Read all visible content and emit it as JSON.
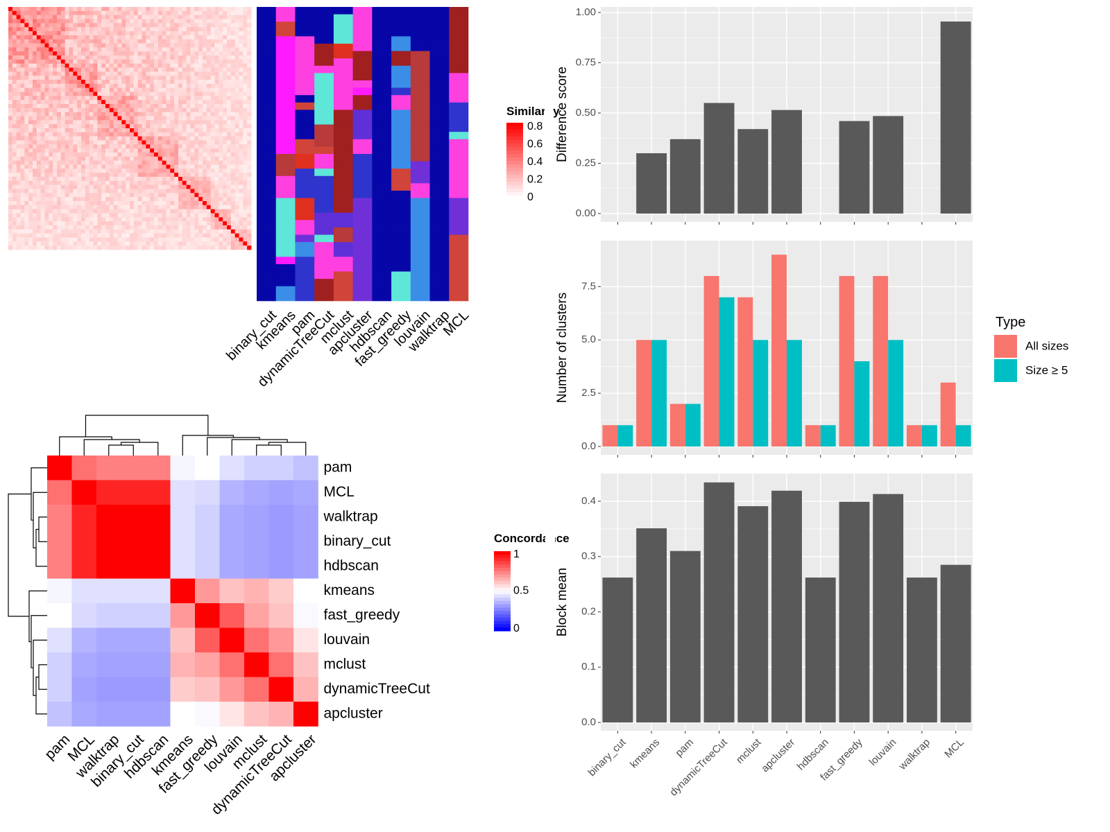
{
  "colors": {
    "heat_low": "#ffffff",
    "heat_high": "#ff0000",
    "concord_low": "#0000ff",
    "concord_mid": "#ffffff",
    "concord_high": "#ff0000",
    "bar_dark": "#595959",
    "panel_bg": "#ebebeb",
    "all_sizes": "#f8766d",
    "size_ge5": "#00bfc4",
    "cluster_palette": [
      "#0707a8",
      "#2f35cc",
      "#5f30d8",
      "#7030d8",
      "#3a8ee8",
      "#b83a3a",
      "#d0443a",
      "#e03020",
      "#ff40e0",
      "#ff1aff",
      "#5ee6d8",
      "#a02020"
    ]
  },
  "chart_data": [
    {
      "id": "similarity_heatmap",
      "type": "heatmap",
      "legend_title": "Similarity",
      "legend_ticks": [
        "0.8",
        "0.6",
        "0.4",
        "0.2",
        "0"
      ],
      "n_samples": 60,
      "scale": [
        0,
        0.8
      ]
    },
    {
      "id": "cluster_assignments",
      "type": "heatmap",
      "methods": [
        "binary_cut",
        "kmeans",
        "pam",
        "dynamicTreeCut",
        "mclust",
        "apcluster",
        "hdbscan",
        "fast_greedy",
        "louvain",
        "walktrap",
        "MCL"
      ]
    },
    {
      "id": "concordance_heatmap",
      "type": "heatmap",
      "legend_title": "Concordance",
      "legend_ticks": [
        "1",
        "0.5",
        "0"
      ],
      "row_labels": [
        "pam",
        "MCL",
        "walktrap",
        "binary_cut",
        "hdbscan",
        "kmeans",
        "fast_greedy",
        "louvain",
        "mclust",
        "dynamicTreeCut",
        "apcluster"
      ],
      "col_labels": [
        "pam",
        "MCL",
        "walktrap",
        "binary_cut",
        "hdbscan",
        "kmeans",
        "fast_greedy",
        "louvain",
        "mclust",
        "dynamicTreeCut",
        "apcluster"
      ],
      "values": [
        [
          1.0,
          0.78,
          0.75,
          0.75,
          0.75,
          0.47,
          0.5,
          0.4,
          0.35,
          0.35,
          0.3
        ],
        [
          0.78,
          1.0,
          0.93,
          0.93,
          0.93,
          0.4,
          0.38,
          0.25,
          0.22,
          0.2,
          0.22
        ],
        [
          0.75,
          0.93,
          1.0,
          1.0,
          1.0,
          0.4,
          0.35,
          0.22,
          0.2,
          0.17,
          0.2
        ],
        [
          0.75,
          0.93,
          1.0,
          1.0,
          1.0,
          0.4,
          0.35,
          0.22,
          0.2,
          0.17,
          0.2
        ],
        [
          0.75,
          0.93,
          1.0,
          1.0,
          1.0,
          0.4,
          0.35,
          0.22,
          0.2,
          0.17,
          0.2
        ],
        [
          0.47,
          0.4,
          0.4,
          0.4,
          0.4,
          1.0,
          0.7,
          0.62,
          0.65,
          0.6,
          0.5
        ],
        [
          0.5,
          0.38,
          0.35,
          0.35,
          0.35,
          0.7,
          1.0,
          0.82,
          0.68,
          0.62,
          0.48
        ],
        [
          0.4,
          0.25,
          0.22,
          0.22,
          0.22,
          0.62,
          0.82,
          1.0,
          0.78,
          0.7,
          0.55
        ],
        [
          0.35,
          0.22,
          0.2,
          0.2,
          0.2,
          0.65,
          0.68,
          0.78,
          1.0,
          0.78,
          0.62
        ],
        [
          0.35,
          0.2,
          0.17,
          0.17,
          0.17,
          0.6,
          0.62,
          0.7,
          0.78,
          1.0,
          0.65
        ],
        [
          0.3,
          0.22,
          0.2,
          0.2,
          0.2,
          0.5,
          0.48,
          0.55,
          0.62,
          0.65,
          1.0
        ]
      ]
    },
    {
      "id": "difference_score",
      "type": "bar",
      "categories": [
        "binary_cut",
        "kmeans",
        "pam",
        "dynamicTreeCut",
        "mclust",
        "apcluster",
        "hdbscan",
        "fast_greedy",
        "louvain",
        "walktrap",
        "MCL"
      ],
      "values": [
        0,
        0.3,
        0.37,
        0.55,
        0.42,
        0.515,
        0,
        0.46,
        0.485,
        0,
        0.955
      ],
      "ylabel": "Difference score",
      "ylim": [
        0,
        1
      ],
      "yticks": [
        "0.00",
        "0.25",
        "0.50",
        "0.75",
        "1.00"
      ],
      "grid": true
    },
    {
      "id": "number_of_clusters",
      "type": "bar",
      "categories": [
        "binary_cut",
        "kmeans",
        "pam",
        "dynamicTreeCut",
        "mclust",
        "apcluster",
        "hdbscan",
        "fast_greedy",
        "louvain",
        "walktrap",
        "MCL"
      ],
      "series": [
        {
          "name": "All sizes",
          "values": [
            1,
            5,
            2,
            8,
            7,
            9,
            1,
            8,
            8,
            1,
            3
          ]
        },
        {
          "name": "Size ≥ 5",
          "values": [
            1,
            5,
            2,
            7,
            5,
            5,
            1,
            4,
            5,
            1,
            1
          ]
        }
      ],
      "ylabel": "Number of clusters",
      "ylim": [
        0,
        9.4
      ],
      "yticks": [
        "0.0",
        "2.5",
        "5.0",
        "7.5"
      ],
      "legend_title": "Type",
      "legend_position": "right",
      "grid": true
    },
    {
      "id": "block_mean",
      "type": "bar",
      "categories": [
        "binary_cut",
        "kmeans",
        "pam",
        "dynamicTreeCut",
        "mclust",
        "apcluster",
        "hdbscan",
        "fast_greedy",
        "louvain",
        "walktrap",
        "MCL"
      ],
      "values": [
        0.262,
        0.351,
        0.31,
        0.434,
        0.391,
        0.419,
        0.262,
        0.399,
        0.413,
        0.262,
        0.285
      ],
      "ylabel": "Block mean",
      "ylim": [
        0,
        0.44
      ],
      "yticks": [
        "0.0",
        "0.1",
        "0.2",
        "0.3",
        "0.4"
      ],
      "grid": true
    }
  ]
}
